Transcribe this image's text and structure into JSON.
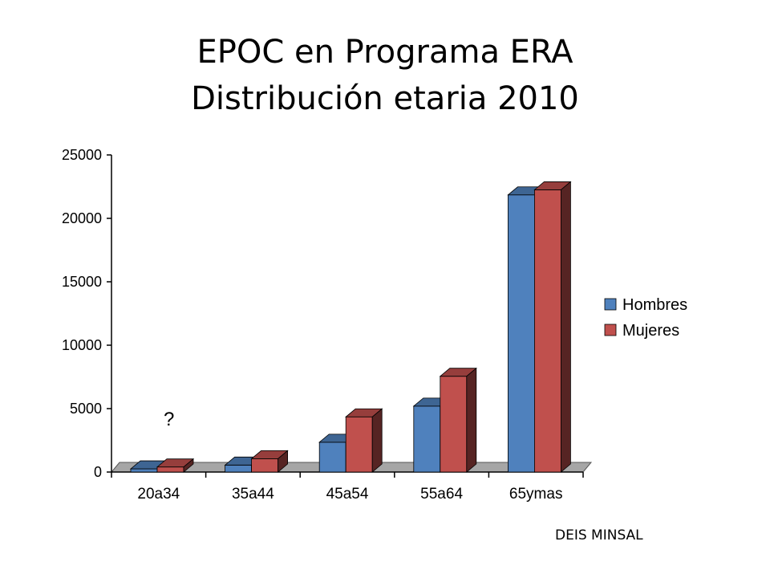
{
  "title_line1": "EPOC en Programa ERA",
  "title_line2": "Distribución etaria 2010",
  "source": "DEIS MINSAL",
  "colors": {
    "hombres": "#4f81bd",
    "mujeres": "#c0504d"
  },
  "chart_data": {
    "type": "bar",
    "categories": [
      "20a34",
      "35a44",
      "45a54",
      "55a64",
      "65ymas"
    ],
    "series": [
      {
        "name": "Hombres",
        "values": [
          250,
          550,
          2350,
          5200,
          21850
        ]
      },
      {
        "name": "Mujeres",
        "values": [
          400,
          1050,
          4350,
          7550,
          22250
        ]
      }
    ],
    "ylim": [
      0,
      25000
    ],
    "yticks": [
      0,
      5000,
      10000,
      15000,
      20000,
      25000
    ],
    "legend_position": "right",
    "annotation": "?"
  }
}
